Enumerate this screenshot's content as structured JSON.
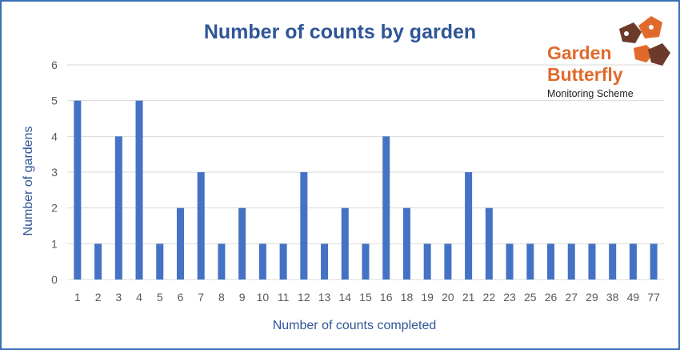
{
  "chart_data": {
    "type": "bar",
    "title": "Number of counts by garden",
    "xlabel": "Number of counts completed",
    "ylabel": "Number of gardens",
    "categories": [
      "1",
      "2",
      "3",
      "4",
      "5",
      "6",
      "7",
      "8",
      "9",
      "10",
      "11",
      "12",
      "13",
      "14",
      "15",
      "16",
      "18",
      "19",
      "20",
      "21",
      "22",
      "23",
      "25",
      "26",
      "27",
      "29",
      "38",
      "49",
      "77"
    ],
    "values": [
      5,
      1,
      4,
      5,
      1,
      2,
      3,
      1,
      2,
      1,
      1,
      3,
      1,
      2,
      1,
      4,
      2,
      1,
      1,
      3,
      2,
      1,
      1,
      1,
      1,
      1,
      1,
      1,
      1
    ],
    "ylim": [
      0,
      6
    ],
    "yticks": [
      0,
      1,
      2,
      3,
      4,
      5,
      6
    ],
    "grid": true,
    "legend": "none"
  },
  "logo": {
    "line1": "Garden",
    "line2": "Butterfly",
    "line3": "Monitoring Scheme"
  },
  "colors": {
    "bar": "#4472c4",
    "title": "#2f5597",
    "label": "#2f5597",
    "tick": "#595959",
    "grid": "#d9d9d9",
    "frame": "#3b6fb6",
    "logo_orange": "#e06a2c",
    "logo_brown": "#6b3a2a",
    "logo_text": "#1f1f1f"
  }
}
